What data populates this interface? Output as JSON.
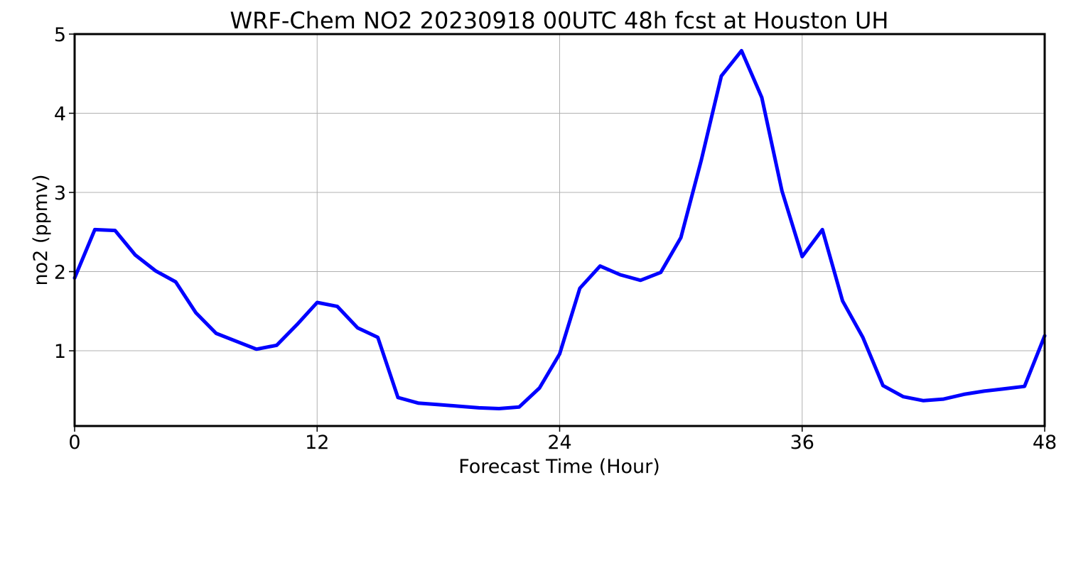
{
  "chart_data": {
    "type": "line",
    "title": "WRF-Chem NO2  20230918 00UTC 48h fcst at Houston UH",
    "xlabel": "Forecast Time (Hour)",
    "ylabel": "no2  (ppmv)",
    "xlim": [
      0,
      48
    ],
    "ylim": [
      0.05,
      5
    ],
    "xticks": [
      0,
      12,
      24,
      36,
      48
    ],
    "yticks": [
      1,
      2,
      3,
      4,
      5
    ],
    "grid": true,
    "series": [
      {
        "color": "#0000ff",
        "x": [
          0,
          1,
          2,
          3,
          4,
          5,
          6,
          7,
          8,
          9,
          10,
          11,
          12,
          13,
          14,
          15,
          16,
          17,
          18,
          19,
          20,
          21,
          22,
          23,
          24,
          25,
          26,
          27,
          28,
          29,
          30,
          31,
          32,
          33,
          34,
          35,
          36,
          37,
          38,
          39,
          40,
          41,
          42,
          43,
          44,
          45,
          46,
          47,
          48
        ],
        "y": [
          1.92,
          2.53,
          2.52,
          2.21,
          2.01,
          1.87,
          1.48,
          1.22,
          1.12,
          1.02,
          1.07,
          1.33,
          1.61,
          1.56,
          1.29,
          1.17,
          0.41,
          0.34,
          0.32,
          0.3,
          0.28,
          0.27,
          0.29,
          0.53,
          0.96,
          1.79,
          2.07,
          1.96,
          1.89,
          1.99,
          2.43,
          3.4,
          4.47,
          4.79,
          4.2,
          3.02,
          2.19,
          2.53,
          1.63,
          1.17,
          0.56,
          0.42,
          0.37,
          0.39,
          0.45,
          0.49,
          0.52,
          0.55,
          1.19
        ]
      }
    ]
  }
}
